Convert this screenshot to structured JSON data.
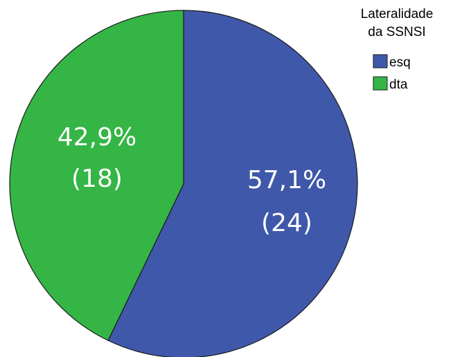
{
  "chart_data": {
    "type": "pie",
    "legend_title_lines": [
      "Lateralidade",
      "da SSNSI"
    ],
    "legend_position": "top-right",
    "slices": [
      {
        "name": "esq",
        "count": 24,
        "percent": 57.1,
        "percent_label": "57,1%",
        "count_label": "(24)",
        "color": "#3F58A9"
      },
      {
        "name": "dta",
        "count": 18,
        "percent": 42.9,
        "percent_label": "42,9%",
        "count_label": "(18)",
        "color": "#34B546"
      }
    ]
  }
}
